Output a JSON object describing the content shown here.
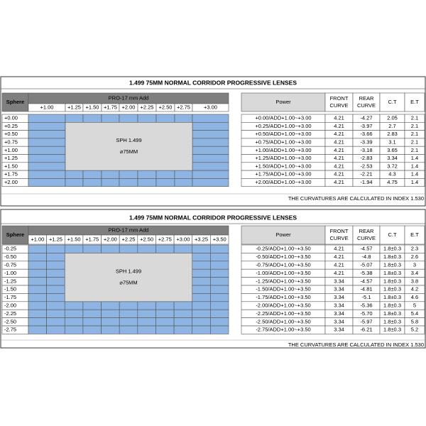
{
  "tables": [
    {
      "title": "1.499 75MM NORMAL CORRIDOR PROGRESSIVE LENSES",
      "sphere_label": "Sphere",
      "add_label": "PRO-17 mm  Add",
      "adds": [
        "+1.00",
        "+1.25",
        "+1.50",
        "+1.75",
        "+2.00",
        "+2.25",
        "+2.50",
        "+2.75",
        "+3.00"
      ],
      "box": [
        "SPH 1.499",
        "⌀75MM"
      ],
      "headers": {
        "power": [
          "Power"
        ],
        "front": [
          "FRONT",
          "CURVE"
        ],
        "rear": [
          "REAR",
          "CURVE"
        ],
        "ct": [
          "C.T"
        ],
        "et": [
          "E.T"
        ]
      },
      "rows": [
        {
          "sphere": "+0.00",
          "power": "+0.00/ADD+1.00~+3.00",
          "front": "4.21",
          "rear": "-4.27",
          "ct": "2.05",
          "et": "2.1"
        },
        {
          "sphere": "+0.25",
          "power": "+0.25/ADD+1.00~+3.00",
          "front": "4.21",
          "rear": "-3.97",
          "ct": "2.7",
          "et": "2.1"
        },
        {
          "sphere": "+0.50",
          "power": "+0.50/ADD+1.00~+3.00",
          "front": "4.21",
          "rear": "-3.66",
          "ct": "2.83",
          "et": "2.1"
        },
        {
          "sphere": "+0.75",
          "power": "+0.75/ADD+1.00~+3.00",
          "front": "4.21",
          "rear": "-3.39",
          "ct": "3.1",
          "et": "2.1"
        },
        {
          "sphere": "+1.00",
          "power": "+1.00/ADD+1.00~+3.00",
          "front": "4.21",
          "rear": "-3.18",
          "ct": "3.65",
          "et": "2.1"
        },
        {
          "sphere": "+1.25",
          "power": "+1.25/ADD+1.00~+3.00",
          "front": "4.21",
          "rear": "-2.83",
          "ct": "3.34",
          "et": "1.4"
        },
        {
          "sphere": "+1.50",
          "power": "+1.50/ADD+1.00~+3.00",
          "front": "4.21",
          "rear": "-2.53",
          "ct": "3.72",
          "et": "1.4"
        },
        {
          "sphere": "+1.75",
          "power": "+1.75/ADD+1.00~+3.00",
          "front": "4.21",
          "rear": "-2.21",
          "ct": "4.3",
          "et": "1.4"
        },
        {
          "sphere": "+2.00",
          "power": "+2.00/ADD+1.00~+3.00",
          "front": "4.21",
          "rear": "-1.94",
          "ct": "4.75",
          "et": "1.4"
        }
      ],
      "note": "THE CURVATURES ARE CALCULATED IN INDEX 1.530"
    },
    {
      "title": "1.499 75MM NORMAL CORRIDOR PROGRESSIVE LENSES",
      "sphere_label": "Sphere",
      "add_label": "PRO-17 mm  Add",
      "adds": [
        "+1.00",
        "+1.25",
        "+1.50",
        "+1.75",
        "+2.00",
        "+2.25",
        "+2.50",
        "+2.75",
        "+3.00",
        "+3.25",
        "+3.50"
      ],
      "box": [
        "SPH 1.499",
        "⌀75MM"
      ],
      "headers": {
        "power": [
          "Power"
        ],
        "front": [
          "FRONT",
          "CURVE"
        ],
        "rear": [
          "REAR",
          "CURVE"
        ],
        "ct": [
          "C.T"
        ],
        "et": [
          "E.T"
        ]
      },
      "rows": [
        {
          "sphere": "-0.25",
          "power": "-0.25/ADD+1.00~+3.50",
          "front": "4.21",
          "rear": "-4.57",
          "ct": "1.8±0.3",
          "et": "2.3"
        },
        {
          "sphere": "-0.50",
          "power": "-0.50/ADD+1.00~+3.50",
          "front": "4.21",
          "rear": "-4.8",
          "ct": "1.8±0.3",
          "et": "2.6"
        },
        {
          "sphere": "-0.75",
          "power": "-0.75/ADD+1.00~+3.50",
          "front": "4.21",
          "rear": "-5.07",
          "ct": "1.8±0.3",
          "et": "3"
        },
        {
          "sphere": "-1.00",
          "power": "-1.00/ADD+1.00~+3.50",
          "front": "4.21",
          "rear": "-5.38",
          "ct": "1.8±0.3",
          "et": "3.4"
        },
        {
          "sphere": "-1.25",
          "power": "-1.25/ADD+1.00~+3.50",
          "front": "3.34",
          "rear": "-4.57",
          "ct": "1.8±0.3",
          "et": "3.8"
        },
        {
          "sphere": "-1.50",
          "power": "-1.50/ADD+1.00~+3.50",
          "front": "3.34",
          "rear": "-4.81",
          "ct": "1.8±0.3",
          "et": "4.2"
        },
        {
          "sphere": "-1.75",
          "power": "-1.75/ADD+1.00~+3.50",
          "front": "3.34",
          "rear": "-5.1",
          "ct": "1.8±0.3",
          "et": "4.6"
        },
        {
          "sphere": "-2.00",
          "power": "-2.00/ADD+1.00~+3.50",
          "front": "3.34",
          "rear": "-5.36",
          "ct": "1.8±0.3",
          "et": "5"
        },
        {
          "sphere": "-2.25",
          "power": "-2.25/ADD+1.00~+3.50",
          "front": "3.34",
          "rear": "-5.70",
          "ct": "1.8±0.3",
          "et": "5.4"
        },
        {
          "sphere": "-2.50",
          "power": "-2.50/ADD+1.00~+3.50",
          "front": "3.34",
          "rear": "-5.97",
          "ct": "1.8±0.3",
          "et": "5.8"
        },
        {
          "sphere": "-2.75",
          "power": "-2.75/ADD+1.00~+3.50",
          "front": "3.34",
          "rear": "-6.21",
          "ct": "1.8±0.3",
          "et": "5.2"
        }
      ],
      "note": "THE CURVATURES ARE CALCULATED IN INDEX 1.530"
    }
  ]
}
